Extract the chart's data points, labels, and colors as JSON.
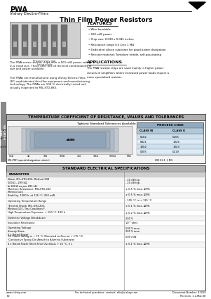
{
  "title_main": "PWA",
  "subtitle": "Vishay Electro-Films",
  "doc_title": "Thin Film Power Resistors",
  "features_title": "FEATURES",
  "features": [
    "Wire bondable",
    "500 mW power",
    "Chip size: 0.030 x 0.045 inches",
    "Resistance range 0.3 Ω to 1 MΩ",
    "Dedicated silicon substrate for good power dissipation",
    "Resistor material: Tantalum nitride, self-passivating"
  ],
  "applications_title": "APPLICATIONS",
  "applications_text": "The PWA resistor chips are used mainly in higher power circuits of amplifiers where increased power loads require a more specialized resistor.",
  "product_note": "Product may not\nbe to scale",
  "body_text1": "The PWA series resistor chips offer a 500 mW power rating\nin a small size. These offer one of the best combinations of\nsize and power available.",
  "body_text2": "The PWAs are manufactured using Vishay Electro-Films\n(EF) sophisticated thin film equipment and manufacturing\ntechnology. The PWAs are 100 % electrically tested and\nvisually inspected to MIL-STD-883.",
  "tcr_section_title": "TEMPERATURE COEFFICIENT OF RESISTANCE, VALUES AND TOLERANCES",
  "tcr_subtitle": "Tightest Standard Tolerances Available",
  "std_elec_title": "STANDARD ELECTRICAL SPECIFICATIONS",
  "param_header": "PARAMETER",
  "spec_rows": [
    {
      "param": "Noise, MIL-STD-202, Method 308\n100 Ω - 299 kΩ\n≥ 100 Ω as per 291 kΩ",
      "value": "- 20 dB typ.\n- 20 dB typ."
    },
    {
      "param": "Moisture Resistance, MIL-STD-202\nMethod 106",
      "value": "± 0.5 % max. ∆R/R"
    },
    {
      "param": "Stability, 1000 h, at 125 °C, 250 mW",
      "value": "± 0.5 % max. ∆R/R"
    },
    {
      "param": "Operating Temperature Range",
      "value": "- 105 °C to + 125 °C"
    },
    {
      "param": "Thermal Shock, MIL-STD-202,\nMethod 107, Test Condition F",
      "value": "± 0.1 % max. ∆R/R"
    },
    {
      "param": "High Temperature Exposure, + 150 °C, 100 h",
      "value": "± 0.2 % max. ∆R/R"
    },
    {
      "param": "Dielectric Voltage Breakdown",
      "value": "200 V"
    },
    {
      "param": "Insulation Resistance",
      "value": "10¹⁰ ohm."
    },
    {
      "param": "Operating Voltage\nSteady State\n3 x Rated Power",
      "value": "500 V max.\n200 V max."
    },
    {
      "param": "DC Power Rating at + 70 °C (Derrated to Zero at + 175 °C)\n(Conductive Epoxy Die Attach to Alumina Substrate)",
      "value": "500 mW"
    },
    {
      "param": "4 x Rated Power Short-Time Overload, + 25 °C, 5 s",
      "value": "± 0.1 % max. ∆R/R"
    }
  ],
  "footer_left": "www.vishay.com\n60",
  "footer_center": "For technical questions, contact: efis@vishay.com",
  "footer_right": "Document Number: 41019\nRevision: 1.2-Mar-08",
  "bg_color": "#ffffff"
}
